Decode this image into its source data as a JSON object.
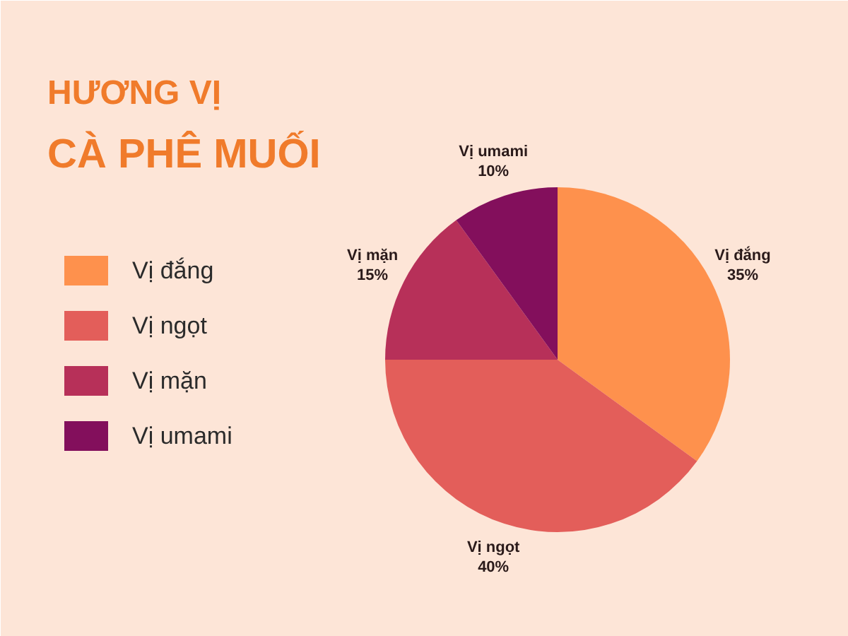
{
  "chart_data": {
    "type": "pie",
    "title": "HƯƠNG VỊ\nCÀ PHÊ MUỐI",
    "categories": [
      "Vị đắng",
      "Vị ngọt",
      "Vị mặn",
      "Vị umami"
    ],
    "values": [
      35,
      40,
      15,
      10
    ],
    "colors": [
      "#fe914d",
      "#e35e5a",
      "#b73059",
      "#830f5c"
    ],
    "value_labels": [
      "35%",
      "40%",
      "15%",
      "10%"
    ],
    "legend": "left"
  }
}
